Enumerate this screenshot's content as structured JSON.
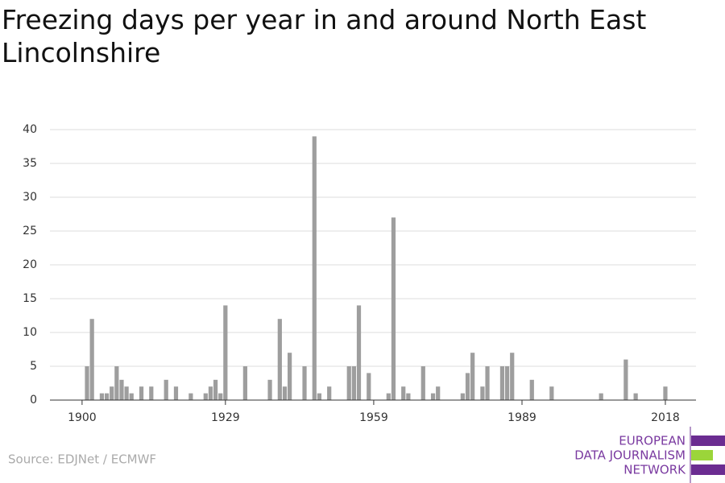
{
  "chart_data": {
    "type": "bar",
    "title": "Freezing days per year in and around North East Lincolnshire",
    "source": "Source: EDJNet / ECMWF",
    "logo": [
      "EUROPEAN",
      "DATA JOURNALISM",
      "NETWORK"
    ],
    "color": "#9e9e9e",
    "x": [
      1900,
      1901,
      1902,
      1903,
      1904,
      1905,
      1906,
      1907,
      1908,
      1909,
      1910,
      1911,
      1912,
      1913,
      1914,
      1915,
      1916,
      1917,
      1918,
      1919,
      1920,
      1921,
      1922,
      1923,
      1924,
      1925,
      1926,
      1927,
      1928,
      1929,
      1930,
      1931,
      1932,
      1933,
      1934,
      1935,
      1936,
      1937,
      1938,
      1939,
      1940,
      1941,
      1942,
      1943,
      1944,
      1945,
      1946,
      1947,
      1948,
      1949,
      1950,
      1951,
      1952,
      1953,
      1954,
      1955,
      1956,
      1957,
      1958,
      1959,
      1960,
      1961,
      1962,
      1963,
      1964,
      1965,
      1966,
      1967,
      1968,
      1969,
      1970,
      1971,
      1972,
      1973,
      1974,
      1975,
      1976,
      1977,
      1978,
      1979,
      1980,
      1981,
      1982,
      1983,
      1984,
      1985,
      1986,
      1987,
      1988,
      1989,
      1990,
      1991,
      1992,
      1993,
      1994,
      1995,
      1996,
      1997,
      1998,
      1999,
      2000,
      2001,
      2002,
      2003,
      2004,
      2005,
      2006,
      2007,
      2008,
      2009,
      2010,
      2011,
      2012,
      2013,
      2014,
      2015,
      2016,
      2017,
      2018
    ],
    "values": [
      0,
      5,
      12,
      0,
      1,
      1,
      2,
      5,
      3,
      2,
      1,
      0,
      2,
      0,
      2,
      0,
      0,
      3,
      0,
      2,
      0,
      0,
      1,
      0,
      0,
      1,
      2,
      3,
      1,
      14,
      0,
      0,
      0,
      5,
      0,
      0,
      0,
      0,
      3,
      0,
      12,
      2,
      7,
      0,
      0,
      5,
      0,
      39,
      1,
      0,
      2,
      0,
      0,
      0,
      5,
      5,
      14,
      0,
      4,
      0,
      0,
      0,
      1,
      27,
      0,
      2,
      1,
      0,
      0,
      5,
      0,
      1,
      2,
      0,
      0,
      0,
      0,
      1,
      4,
      7,
      0,
      2,
      5,
      0,
      0,
      5,
      5,
      7,
      0,
      0,
      0,
      3,
      0,
      0,
      0,
      2,
      0,
      0,
      0,
      0,
      0,
      0,
      0,
      0,
      0,
      1,
      0,
      0,
      0,
      0,
      6,
      0,
      1,
      0,
      0,
      0,
      0,
      0,
      2
    ],
    "xlim": [
      1893.5,
      2024.2
    ],
    "xticks": [
      1900,
      1929,
      1959,
      1989,
      2018
    ],
    "ylim": [
      0,
      40
    ],
    "yticks": [
      0,
      5,
      10,
      15,
      20,
      25,
      30,
      35,
      40
    ],
    "grid": true
  }
}
